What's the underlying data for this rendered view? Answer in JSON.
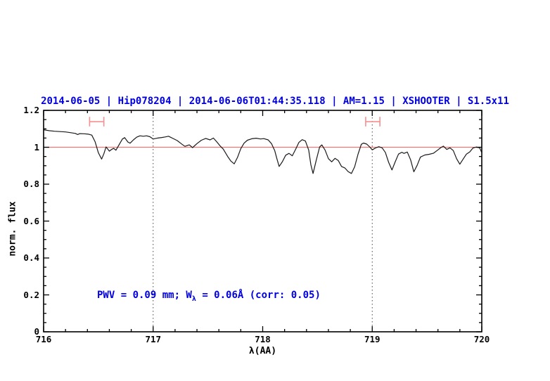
{
  "title": {
    "text": "2014-06-05 | Hip078204 | 2014-06-06T01:44:35.118 | AM=1.15 | XSHOOTER | S1.5x11",
    "color": "#0000e0"
  },
  "annotation": {
    "prefix": "PWV = 0.09 mm; W",
    "sub": "λ",
    "suffix": " = 0.06Å (corr: 0.05)",
    "color": "#0000e0"
  },
  "axes": {
    "xlabel": "λ(AA)",
    "ylabel": "norm. flux",
    "xlim": [
      716,
      720
    ],
    "ylim": [
      0,
      1.2
    ],
    "xtick_values": [
      716,
      717,
      718,
      719,
      720
    ],
    "xtick_labels": [
      "716",
      "717",
      "718",
      "719",
      "720"
    ],
    "ytick_values": [
      0,
      0.2,
      0.4,
      0.6,
      0.8,
      1,
      1.2
    ],
    "ytick_labels": [
      "0",
      "0.2",
      "0.4",
      "0.6",
      "0.8",
      "1",
      "1.2"
    ],
    "x_minor_step": 0.2,
    "y_minor_step": 0.05,
    "frame_color": "#000000"
  },
  "chart_data": {
    "type": "line",
    "title": "2014-06-05 | Hip078204 | 2014-06-06T01:44:35.118 | AM=1.15 | XSHOOTER | S1.5x11",
    "xlabel": "λ(AA)",
    "ylabel": "norm. flux",
    "xlim": [
      716,
      720
    ],
    "ylim": [
      0,
      1.2
    ],
    "grid": false,
    "series": [
      {
        "name": "normalized-spectrum",
        "color": "#1a1a1a",
        "x": [
          716.0,
          716.05,
          716.1,
          716.15,
          716.2,
          716.25,
          716.29,
          716.31,
          716.33,
          716.37,
          716.41,
          716.44,
          716.47,
          716.5,
          716.53,
          716.55,
          716.57,
          716.6,
          716.62,
          716.64,
          716.66,
          716.69,
          716.72,
          716.74,
          716.77,
          716.79,
          716.82,
          716.85,
          716.88,
          716.91,
          716.94,
          716.97,
          717.0,
          717.04,
          717.08,
          717.11,
          717.14,
          717.18,
          717.22,
          717.26,
          717.29,
          717.33,
          717.36,
          717.4,
          717.44,
          717.48,
          717.52,
          717.55,
          717.58,
          717.61,
          717.64,
          717.68,
          717.71,
          717.74,
          717.77,
          717.8,
          717.83,
          717.86,
          717.9,
          717.94,
          717.98,
          718.01,
          718.05,
          718.08,
          718.11,
          718.13,
          718.15,
          718.18,
          718.21,
          718.24,
          718.27,
          718.3,
          718.33,
          718.36,
          718.39,
          718.42,
          718.44,
          718.46,
          718.49,
          718.52,
          718.54,
          718.57,
          718.6,
          718.63,
          718.66,
          718.69,
          718.72,
          718.75,
          718.78,
          718.81,
          718.84,
          718.87,
          718.9,
          718.92,
          718.95,
          718.98,
          719.0,
          719.03,
          719.06,
          719.09,
          719.12,
          719.15,
          719.18,
          719.21,
          719.24,
          719.27,
          719.29,
          719.32,
          719.35,
          719.38,
          719.41,
          719.44,
          719.48,
          719.52,
          719.56,
          719.6,
          719.63,
          719.65,
          719.68,
          719.71,
          719.74,
          719.77,
          719.8,
          719.83,
          719.86,
          719.89,
          719.92,
          719.95,
          719.98,
          720.0
        ],
        "y": [
          1.095,
          1.09,
          1.087,
          1.085,
          1.083,
          1.079,
          1.075,
          1.069,
          1.074,
          1.073,
          1.071,
          1.066,
          1.03,
          0.97,
          0.936,
          0.965,
          1.002,
          0.979,
          0.988,
          0.994,
          0.984,
          1.015,
          1.045,
          1.052,
          1.028,
          1.022,
          1.04,
          1.055,
          1.062,
          1.06,
          1.062,
          1.057,
          1.045,
          1.05,
          1.053,
          1.056,
          1.06,
          1.048,
          1.036,
          1.018,
          1.005,
          1.013,
          0.998,
          1.02,
          1.038,
          1.048,
          1.04,
          1.05,
          1.03,
          1.008,
          0.99,
          0.95,
          0.925,
          0.91,
          0.945,
          0.992,
          1.022,
          1.038,
          1.046,
          1.049,
          1.045,
          1.047,
          1.04,
          1.02,
          0.982,
          0.938,
          0.896,
          0.922,
          0.957,
          0.967,
          0.954,
          0.988,
          1.026,
          1.041,
          1.034,
          0.985,
          0.905,
          0.858,
          0.932,
          1.002,
          1.013,
          0.984,
          0.938,
          0.921,
          0.94,
          0.928,
          0.896,
          0.888,
          0.868,
          0.858,
          0.895,
          0.962,
          1.016,
          1.023,
          1.017,
          1.0,
          0.986,
          0.996,
          1.003,
          0.997,
          0.972,
          0.918,
          0.877,
          0.922,
          0.963,
          0.973,
          0.967,
          0.974,
          0.932,
          0.867,
          0.902,
          0.947,
          0.958,
          0.962,
          0.968,
          0.986,
          1.0,
          1.006,
          0.988,
          0.997,
          0.982,
          0.938,
          0.908,
          0.936,
          0.963,
          0.975,
          0.996,
          1.001,
          0.997,
          0.971
        ]
      }
    ],
    "continuum_line": {
      "y": 1.0,
      "color": "#f07878"
    },
    "dotted_vlines": {
      "x": [
        717,
        719
      ],
      "color": "#444444"
    },
    "telluric_markers": {
      "color": "#f59090",
      "y_center": 1.139,
      "cap_half_height": 0.026,
      "ranges": [
        {
          "x_start": 716.42,
          "x_end": 716.55
        },
        {
          "x_start": 718.94,
          "x_end": 719.07
        }
      ]
    },
    "legend": null
  }
}
